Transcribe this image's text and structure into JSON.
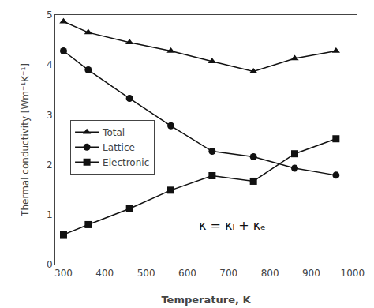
{
  "chart_data": {
    "type": "line",
    "x": [
      300,
      360,
      460,
      560,
      660,
      760,
      860,
      960
    ],
    "series": [
      {
        "name": "Total",
        "color": "#111111",
        "marker": "triangle",
        "values": [
          4.87,
          4.65,
          4.45,
          4.28,
          4.07,
          3.87,
          4.13,
          4.28
        ]
      },
      {
        "name": "Lattice",
        "color": "#111111",
        "marker": "circle",
        "values": [
          4.28,
          3.9,
          3.33,
          2.78,
          2.27,
          2.16,
          1.93,
          1.79
        ]
      },
      {
        "name": "Electronic",
        "color": "#111111",
        "marker": "square",
        "values": [
          0.6,
          0.8,
          1.12,
          1.49,
          1.78,
          1.67,
          2.22,
          2.52
        ]
      }
    ],
    "x_label": "Temperature, K",
    "y_label": "Thermal conductivity [Wm⁻¹K⁻¹]",
    "xlim": [
      280,
      1010
    ],
    "ylim": [
      0,
      5
    ],
    "xticks": [
      300,
      400,
      500,
      600,
      700,
      800,
      900,
      1000
    ],
    "yticks": [
      0,
      1,
      2,
      3,
      4,
      5
    ],
    "annotations": [
      "κ = κₗ + κₑ"
    ],
    "legend": "upper left",
    "grid": false
  }
}
